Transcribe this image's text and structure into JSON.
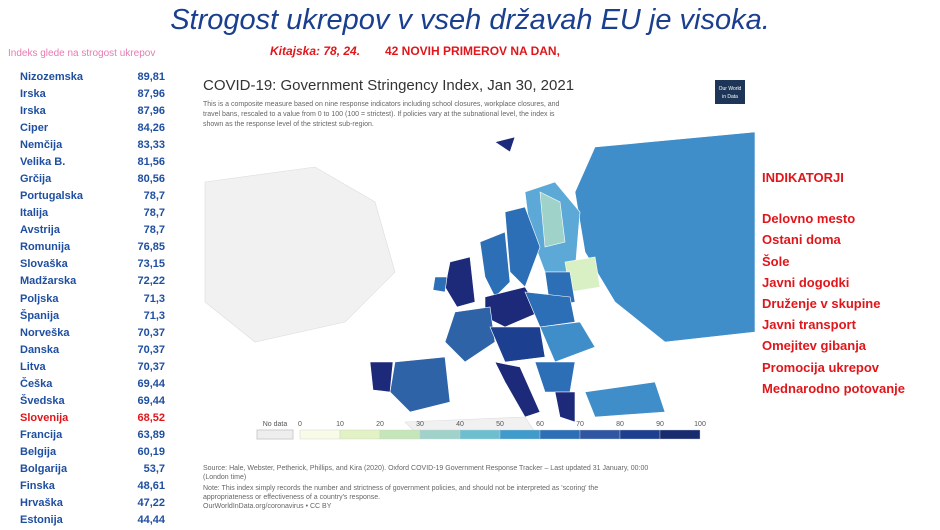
{
  "title": "Strogost ukrepov v vseh državah EU je visoka.",
  "subtitle": "Indeks glede na strogost ukrepov",
  "notes": [
    "Kitajska: 78, 24.",
    "42 NOVIH PRIMEROV NA DAN,"
  ],
  "ranking": {
    "color": "#1f4fa0",
    "highlight_color": "#e0161b",
    "highlight": 20,
    "rows": [
      [
        "Nizozemska",
        "89,81"
      ],
      [
        "Irska",
        "87,96"
      ],
      [
        "Irska",
        "87,96"
      ],
      [
        "Ciper",
        "84,26"
      ],
      [
        "Nemčija",
        "83,33"
      ],
      [
        "Velika B.",
        "81,56"
      ],
      [
        "Grčija",
        "80,56"
      ],
      [
        "Portugalska",
        "78,7"
      ],
      [
        "Italija",
        "78,7"
      ],
      [
        "Avstrija",
        "78,7"
      ],
      [
        "Romunija",
        "76,85"
      ],
      [
        "Slovaška",
        "73,15"
      ],
      [
        "Madžarska",
        "72,22"
      ],
      [
        "Poljska",
        "71,3"
      ],
      [
        "Španija",
        "71,3"
      ],
      [
        "Norveška",
        "70,37"
      ],
      [
        "Danska",
        "70,37"
      ],
      [
        "Litva",
        "70,37"
      ],
      [
        "Češka",
        "69,44"
      ],
      [
        "Švedska",
        "69,44"
      ],
      [
        "Slovenija",
        "68,52"
      ],
      [
        "Francija",
        "63,89"
      ],
      [
        "Belgija",
        "60,19"
      ],
      [
        "Bolgarija",
        "53,7"
      ],
      [
        "Finska",
        "48,61"
      ],
      [
        "Hrvaška",
        "47,22"
      ],
      [
        "Estonija",
        "44,44"
      ]
    ]
  },
  "map": {
    "title": "COVID-19: Government Stringency Index, Jan 30, 2021",
    "description": [
      "This is a composite measure based on nine response indicators including school closures, workplace closures, and",
      "travel bans, rescaled to a value from 0 to 100 (100 = strictest). If policies vary at the subnational level, the index is",
      "shown as the response level of the strictest sub-region."
    ],
    "logo": [
      "Our World",
      "in Data"
    ],
    "legend": {
      "no_data": "No data",
      "ticks": [
        "0",
        "10",
        "20",
        "30",
        "40",
        "50",
        "60",
        "70",
        "80",
        "90",
        "100"
      ],
      "colors": [
        "#f7fbe8",
        "#e3f2c4",
        "#c4e6b8",
        "#9fd3c9",
        "#6dbfd0",
        "#3f9bcb",
        "#2c6fb6",
        "#2f56a3",
        "#1d3f8f",
        "#172b6e"
      ]
    },
    "source": [
      "Source: Hale, Webster, Petherick, Phillips, and Kira (2020). Oxford COVID-19 Government Response Tracker – Last updated 31 January, 00:00",
      "(London time)",
      "Note: This index simply records the number and strictness of government policies, and should not be interpreted as 'scoring' the",
      "appropriateness or effectiveness of a country's response.",
      "OurWorldInData.org/coronavirus • CC BY"
    ]
  },
  "indicators": {
    "heading": "INDIKATORJI",
    "items": [
      "Delovno mesto",
      "Ostani doma",
      "Šole",
      "Javni dogodki",
      "Druženje v skupine",
      "Javni transport",
      "Omejitev gibanja",
      "Promocija ukrepov",
      "Mednarodno potovanje"
    ]
  }
}
